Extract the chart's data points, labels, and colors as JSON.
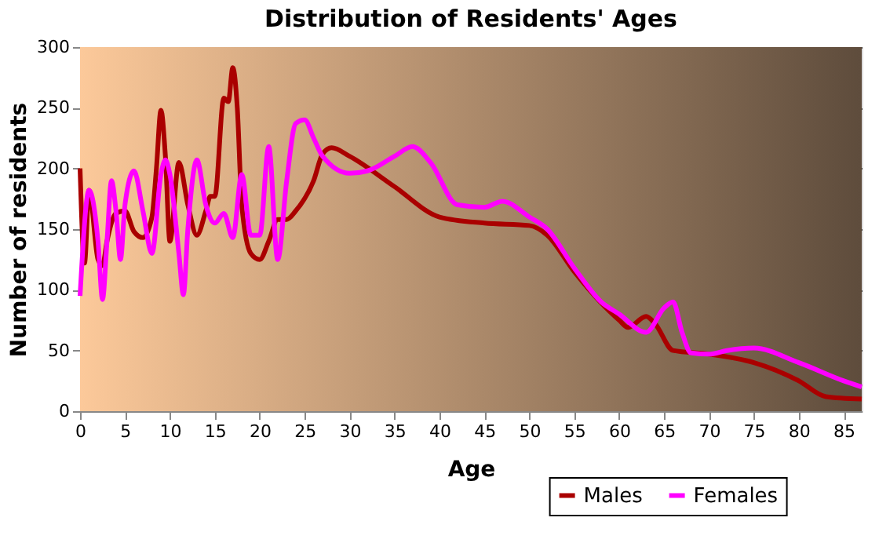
{
  "chart_data": {
    "type": "line",
    "title": "Distribution of Residents' Ages",
    "xlabel": "Age",
    "ylabel": "Number of residents",
    "xlim": [
      0,
      87
    ],
    "xticks": [
      0,
      5,
      10,
      15,
      20,
      25,
      30,
      35,
      40,
      45,
      50,
      55,
      60,
      65,
      70,
      75,
      80,
      85
    ],
    "ylim": [
      0,
      300
    ],
    "yticks": [
      0,
      50,
      100,
      150,
      200,
      250,
      300
    ],
    "grid": true,
    "legend": "bottom right",
    "line_style": "solid",
    "marker": "none",
    "series": [
      {
        "name": "Males",
        "color": "#aa0000",
        "x": [
          0,
          0.5,
          1,
          2,
          2.5,
          3,
          4,
          5,
          6,
          7,
          8,
          8.5,
          9,
          9.5,
          10,
          11,
          12,
          13,
          14,
          14.5,
          15,
          16,
          16.5,
          17,
          17.5,
          18,
          19,
          20,
          21,
          22,
          23,
          24,
          26,
          27,
          28,
          30,
          35,
          40,
          45,
          50,
          52,
          55,
          60,
          61,
          63,
          64,
          66,
          70,
          75,
          80,
          83,
          87
        ],
        "values": [
          200,
          122,
          182,
          125,
          120,
          140,
          163,
          165,
          148,
          143,
          160,
          200,
          248,
          210,
          140,
          205,
          170,
          145,
          165,
          177,
          177,
          258,
          255,
          283,
          250,
          170,
          130,
          125,
          140,
          158,
          158,
          165,
          190,
          212,
          217,
          210,
          185,
          160,
          155,
          153,
          145,
          115,
          75,
          69,
          78,
          72,
          50,
          47,
          40,
          25,
          12,
          10
        ]
      },
      {
        "name": "Females",
        "color": "#ff00ff",
        "x": [
          0,
          1,
          2,
          2.5,
          3,
          3.5,
          4,
          4.5,
          5,
          6,
          7,
          8,
          9,
          9.5,
          10,
          11,
          11.5,
          12,
          13,
          14,
          15,
          16,
          17,
          18,
          19,
          20,
          21,
          22,
          23,
          24,
          25,
          26,
          27,
          30,
          32,
          35,
          37,
          39,
          42,
          45,
          47,
          50,
          52,
          55,
          58,
          60,
          63,
          65,
          66,
          67,
          68,
          70,
          72,
          75,
          80,
          85,
          87
        ],
        "values": [
          95,
          182,
          140,
          92,
          140,
          190,
          165,
          125,
          170,
          198,
          165,
          130,
          195,
          207,
          195,
          130,
          96,
          150,
          207,
          170,
          155,
          163,
          143,
          195,
          145,
          145,
          218,
          125,
          190,
          237,
          240,
          225,
          210,
          196,
          198,
          210,
          218,
          205,
          170,
          168,
          173,
          160,
          150,
          118,
          90,
          80,
          65,
          85,
          90,
          65,
          48,
          47,
          50,
          52,
          40,
          25,
          20
        ]
      }
    ]
  }
}
